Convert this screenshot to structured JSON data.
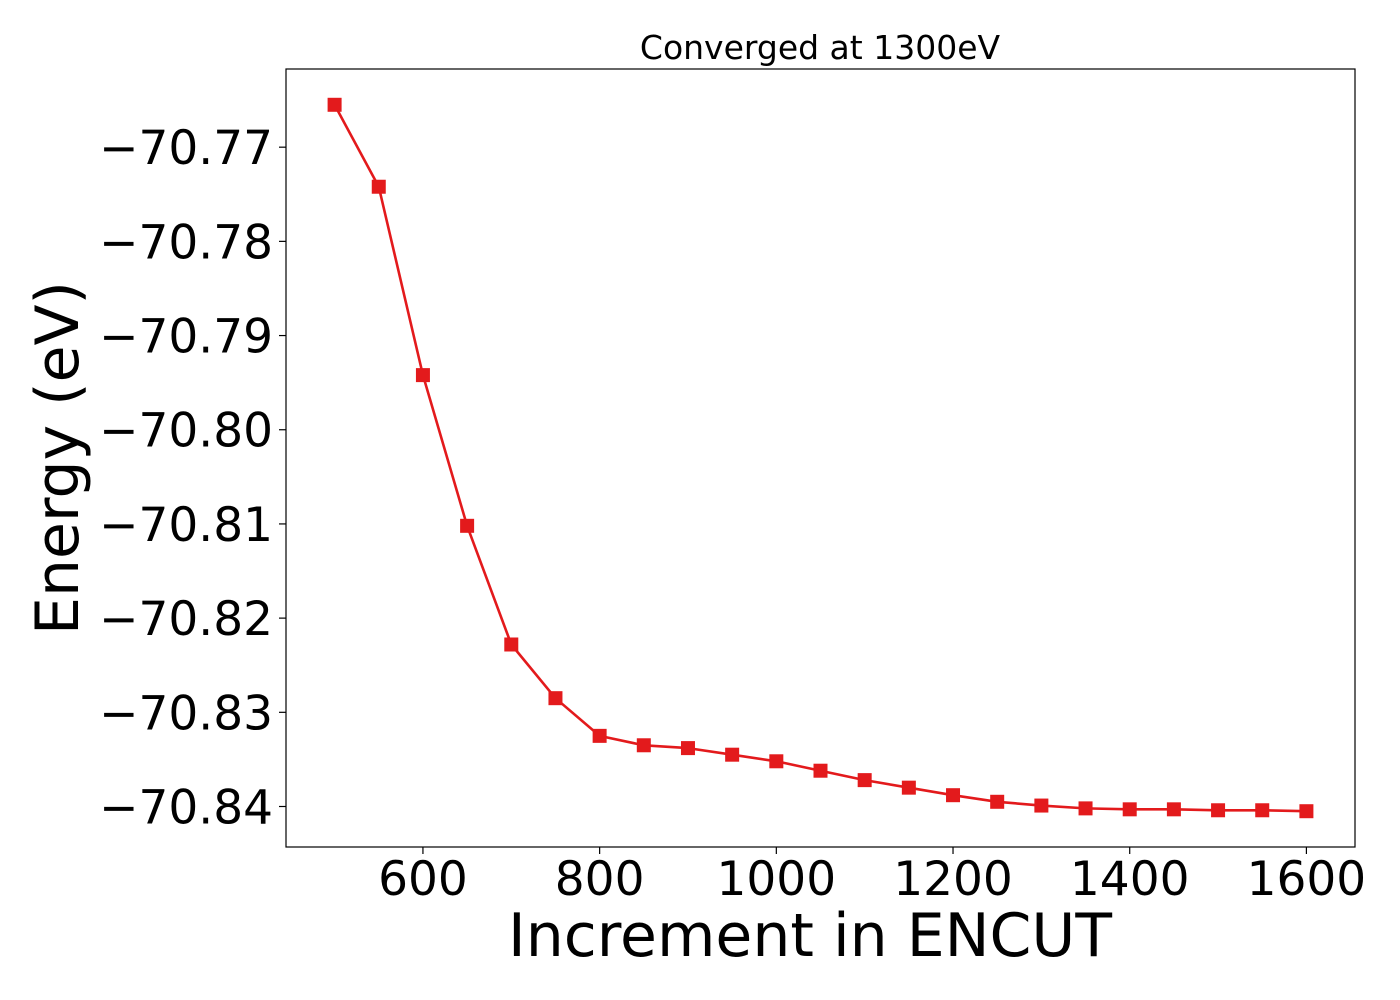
{
  "chart_data": {
    "type": "line",
    "title": "Converged at 1300eV",
    "xlabel": "Increment in ENCUT",
    "ylabel": "Energy (eV)",
    "xlim": [
      445,
      1655
    ],
    "ylim": [
      -70.8443,
      -70.7617
    ],
    "xticks": [
      600,
      800,
      1000,
      1200,
      1400,
      1600
    ],
    "xtick_labels": [
      "600",
      "800",
      "1000",
      "1200",
      "1400",
      "1600"
    ],
    "yticks": [
      -70.77,
      -70.78,
      -70.79,
      -70.8,
      -70.81,
      -70.82,
      -70.83,
      -70.84
    ],
    "ytick_labels": [
      "−70.77",
      "−70.78",
      "−70.79",
      "−70.80",
      "−70.81",
      "−70.82",
      "−70.83",
      "−70.84"
    ],
    "grid": false,
    "series": [
      {
        "color": "#e31a1c",
        "marker": "square",
        "x": [
          500,
          550,
          600,
          650,
          700,
          750,
          800,
          850,
          900,
          950,
          1000,
          1050,
          1100,
          1150,
          1200,
          1250,
          1300,
          1350,
          1400,
          1450,
          1500,
          1550,
          1600
        ],
        "y": [
          -70.7655,
          -70.7742,
          -70.7942,
          -70.8102,
          -70.8228,
          -70.8285,
          -70.8325,
          -70.8335,
          -70.8338,
          -70.8345,
          -70.8352,
          -70.8362,
          -70.8372,
          -70.838,
          -70.8388,
          -70.8395,
          -70.8399,
          -70.8402,
          -70.8403,
          -70.8403,
          -70.8404,
          -70.8404,
          -70.8405
        ]
      }
    ]
  }
}
